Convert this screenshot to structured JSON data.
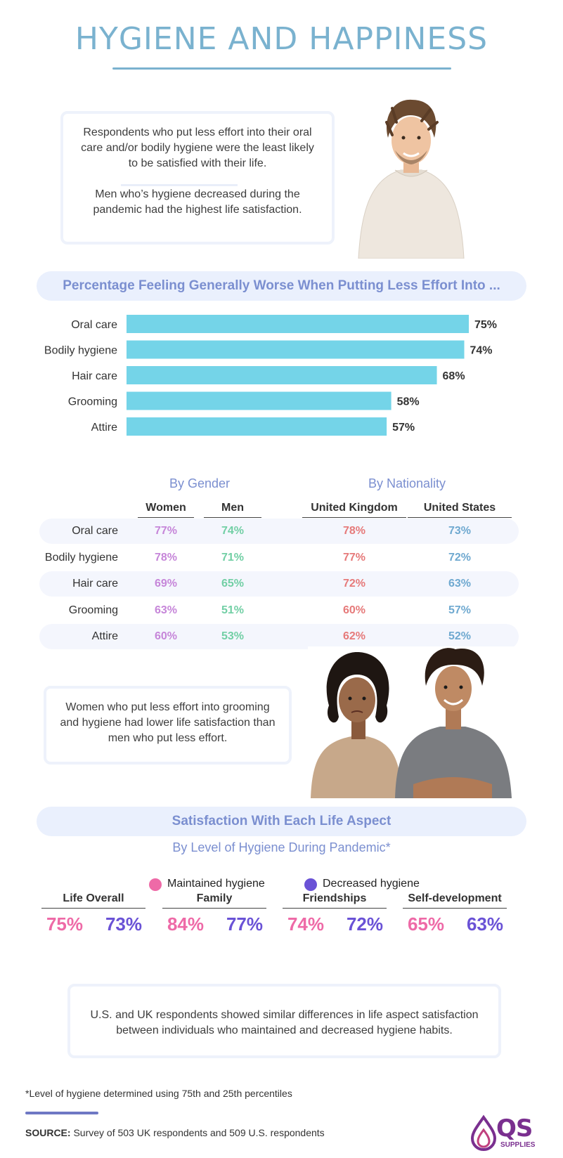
{
  "title": "HYGIENE AND HAPPINESS",
  "intro": {
    "text1": "Respondents who put less effort into their oral care and/or bodily hygiene were the least likely to be satisfied with their life.",
    "text2": "Men who’s hygiene decreased during the pandemic had the highest life satisfaction."
  },
  "bar_section": {
    "heading": "Percentage Feeling Generally Worse When Putting Less Effort Into ..."
  },
  "chart_data": [
    {
      "type": "bar",
      "orientation": "horizontal",
      "title": "Percentage Feeling Generally Worse When Putting Less Effort Into ...",
      "categories": [
        "Oral care",
        "Bodily hygiene",
        "Hair care",
        "Grooming",
        "Attire"
      ],
      "values": [
        75,
        74,
        68,
        58,
        57
      ],
      "value_labels": [
        "75%",
        "74%",
        "68%",
        "58%",
        "57%"
      ],
      "color": "#74d4e8",
      "xlim": [
        0,
        75
      ],
      "grid": false
    },
    {
      "type": "table",
      "groups": [
        "By Gender",
        "By Nationality"
      ],
      "columns": [
        "Women",
        "Men",
        "United Kingdom",
        "United States"
      ],
      "rows": [
        "Oral care",
        "Bodily hygiene",
        "Hair care",
        "Grooming",
        "Attire"
      ],
      "values": [
        [
          "77%",
          "74%",
          "78%",
          "73%"
        ],
        [
          "78%",
          "71%",
          "77%",
          "72%"
        ],
        [
          "69%",
          "65%",
          "72%",
          "63%"
        ],
        [
          "63%",
          "51%",
          "60%",
          "57%"
        ],
        [
          "60%",
          "53%",
          "62%",
          "52%"
        ]
      ],
      "colors": [
        "#c686d9",
        "#72cfa5",
        "#e67a7a",
        "#6fa9d0"
      ]
    },
    {
      "type": "table",
      "title": "Satisfaction With Each Life Aspect",
      "subtitle": "By Level of Hygiene During Pandemic*",
      "series": [
        {
          "name": "Maintained hygiene",
          "color": "#ee6aa7",
          "values": [
            "75%",
            "84%",
            "74%",
            "65%"
          ]
        },
        {
          "name": "Decreased hygiene",
          "color": "#6a52d6",
          "values": [
            "73%",
            "77%",
            "72%",
            "63%"
          ]
        }
      ],
      "categories": [
        "Life Overall",
        "Family",
        "Friendships",
        "Self-development"
      ]
    }
  ],
  "women_box": {
    "text": "Women who put less effort into grooming and hygiene had lower life satisfaction than men who put less effort."
  },
  "us_uk_box": {
    "text": "U.S. and UK respondents showed similar differences in life aspect satisfaction between individuals who maintained and decreased hygiene habits."
  },
  "footer": {
    "footnote": "*Level of hygiene determined using 75th and 25th percentiles",
    "source_label": "SOURCE:",
    "source_text": " Survey of 503 UK respondents and 509 U.S. respondents",
    "logo_text": "QS",
    "logo_sub": "SUPPLIES"
  }
}
